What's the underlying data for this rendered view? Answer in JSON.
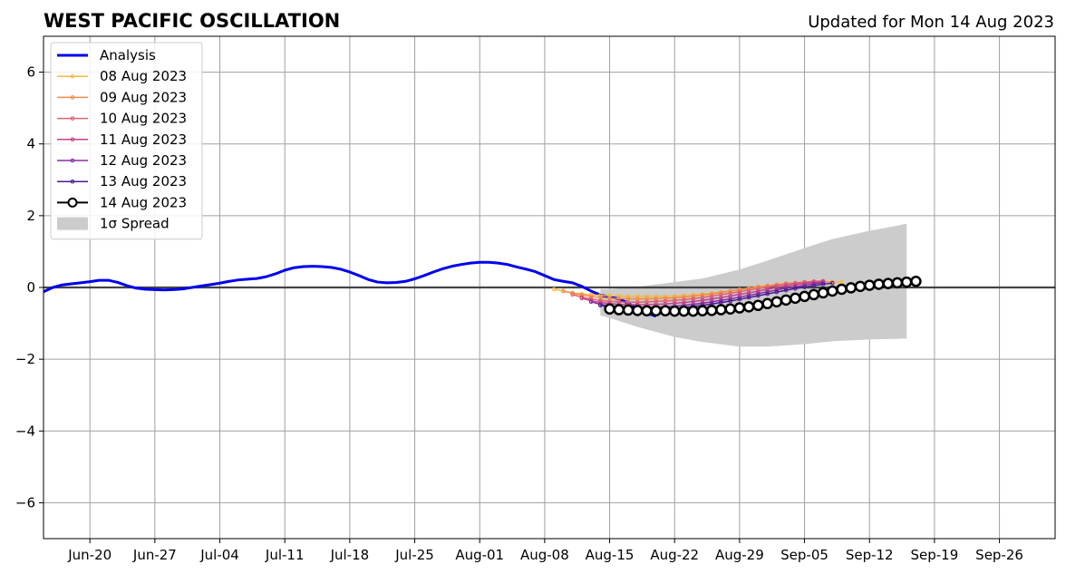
{
  "chart_data": {
    "type": "line",
    "title": "WEST PACIFIC OSCILLATION",
    "subtitle": "Updated for Mon 14 Aug 2023",
    "xlabel": "",
    "ylabel": "",
    "xlim": [
      "2023-06-15",
      "2023-10-02"
    ],
    "ylim": [
      -7,
      7
    ],
    "grid": true,
    "legend_position": "top-left",
    "x_ticks": [
      {
        "date": "2023-06-20",
        "label": "Jun-20"
      },
      {
        "date": "2023-06-27",
        "label": "Jun-27"
      },
      {
        "date": "2023-07-04",
        "label": "Jul-04"
      },
      {
        "date": "2023-07-11",
        "label": "Jul-11"
      },
      {
        "date": "2023-07-18",
        "label": "Jul-18"
      },
      {
        "date": "2023-07-25",
        "label": "Jul-25"
      },
      {
        "date": "2023-08-01",
        "label": "Aug-01"
      },
      {
        "date": "2023-08-08",
        "label": "Aug-08"
      },
      {
        "date": "2023-08-15",
        "label": "Aug-15"
      },
      {
        "date": "2023-08-22",
        "label": "Aug-22"
      },
      {
        "date": "2023-08-29",
        "label": "Aug-29"
      },
      {
        "date": "2023-09-05",
        "label": "Sep-05"
      },
      {
        "date": "2023-09-12",
        "label": "Sep-12"
      },
      {
        "date": "2023-09-19",
        "label": "Sep-19"
      },
      {
        "date": "2023-09-26",
        "label": "Sep-26"
      }
    ],
    "y_ticks": [
      {
        "value": 6,
        "label": "6"
      },
      {
        "value": 4,
        "label": "4"
      },
      {
        "value": 2,
        "label": "2"
      },
      {
        "value": 0,
        "label": "0"
      },
      {
        "value": -2,
        "label": "−2"
      },
      {
        "value": -4,
        "label": "−4"
      },
      {
        "value": -6,
        "label": "−6"
      }
    ],
    "analysis": {
      "name": "Analysis",
      "color": "#0000ee",
      "start": "2023-06-15",
      "values": [
        -0.12,
        0.0,
        0.07,
        0.1,
        0.13,
        0.16,
        0.2,
        0.2,
        0.14,
        0.05,
        -0.02,
        -0.05,
        -0.06,
        -0.07,
        -0.06,
        -0.04,
        0.0,
        0.04,
        0.08,
        0.12,
        0.17,
        0.21,
        0.23,
        0.25,
        0.3,
        0.38,
        0.48,
        0.55,
        0.58,
        0.59,
        0.58,
        0.56,
        0.51,
        0.43,
        0.33,
        0.22,
        0.15,
        0.13,
        0.14,
        0.17,
        0.24,
        0.33,
        0.43,
        0.52,
        0.59,
        0.64,
        0.68,
        0.7,
        0.7,
        0.68,
        0.64,
        0.57,
        0.51,
        0.44,
        0.33,
        0.22,
        0.17,
        0.13,
        0.03,
        -0.1,
        -0.21,
        -0.26,
        -0.32,
        -0.44,
        -0.6,
        -0.72,
        -0.8
      ]
    },
    "forecasts": [
      {
        "name": "08 Aug 2023",
        "color": "#f5b841",
        "start": "2023-08-09",
        "values": [
          -0.05,
          -0.1,
          -0.15,
          -0.18,
          -0.2,
          -0.22,
          -0.23,
          -0.24,
          -0.25,
          -0.25,
          -0.25,
          -0.25,
          -0.25,
          -0.24,
          -0.23,
          -0.21,
          -0.19,
          -0.16,
          -0.13,
          -0.1,
          -0.06,
          -0.03,
          0.0,
          0.03,
          0.06,
          0.09,
          0.12,
          0.14,
          0.15,
          0.16,
          0.16,
          0.15
        ]
      },
      {
        "name": "09 Aug 2023",
        "color": "#f08c4a",
        "start": "2023-08-10",
        "values": [
          -0.1,
          -0.16,
          -0.21,
          -0.25,
          -0.28,
          -0.3,
          -0.31,
          -0.32,
          -0.32,
          -0.32,
          -0.31,
          -0.3,
          -0.29,
          -0.27,
          -0.24,
          -0.21,
          -0.18,
          -0.14,
          -0.1,
          -0.06,
          -0.02,
          0.02,
          0.05,
          0.08,
          0.11,
          0.13,
          0.15,
          0.16,
          0.16,
          0.15
        ]
      },
      {
        "name": "10 Aug 2023",
        "color": "#e0616d",
        "start": "2023-08-11",
        "values": [
          -0.2,
          -0.27,
          -0.32,
          -0.36,
          -0.39,
          -0.4,
          -0.41,
          -0.41,
          -0.4,
          -0.39,
          -0.38,
          -0.36,
          -0.34,
          -0.31,
          -0.28,
          -0.24,
          -0.2,
          -0.16,
          -0.12,
          -0.07,
          -0.03,
          0.01,
          0.05,
          0.09,
          0.12,
          0.15,
          0.17,
          0.18
        ]
      },
      {
        "name": "11 Aug 2023",
        "color": "#c4438a",
        "start": "2023-08-12",
        "values": [
          -0.3,
          -0.37,
          -0.42,
          -0.45,
          -0.47,
          -0.48,
          -0.48,
          -0.48,
          -0.47,
          -0.46,
          -0.44,
          -0.42,
          -0.39,
          -0.36,
          -0.32,
          -0.28,
          -0.24,
          -0.19,
          -0.15,
          -0.1,
          -0.05,
          0.0,
          0.04,
          0.08,
          0.11,
          0.14,
          0.16
        ]
      },
      {
        "name": "12 Aug 2023",
        "color": "#8a2ea3",
        "start": "2023-08-13",
        "values": [
          -0.4,
          -0.47,
          -0.51,
          -0.54,
          -0.55,
          -0.56,
          -0.56,
          -0.55,
          -0.54,
          -0.52,
          -0.5,
          -0.47,
          -0.44,
          -0.4,
          -0.36,
          -0.32,
          -0.27,
          -0.22,
          -0.17,
          -0.12,
          -0.07,
          -0.02,
          0.02,
          0.06,
          0.1,
          0.13
        ]
      },
      {
        "name": "13 Aug 2023",
        "color": "#4a1c8f",
        "start": "2023-08-14",
        "values": [
          -0.5,
          -0.55,
          -0.58,
          -0.6,
          -0.61,
          -0.61,
          -0.61,
          -0.6,
          -0.58,
          -0.56,
          -0.53,
          -0.5,
          -0.46,
          -0.42,
          -0.38,
          -0.33,
          -0.28,
          -0.23,
          -0.18,
          -0.13,
          -0.08,
          -0.03,
          0.01,
          0.05,
          0.09,
          0.12
        ]
      },
      {
        "name": "14 Aug 2023",
        "color": "#000000",
        "start": "2023-08-15",
        "values": [
          -0.6,
          -0.62,
          -0.63,
          -0.64,
          -0.65,
          -0.65,
          -0.65,
          -0.66,
          -0.66,
          -0.66,
          -0.65,
          -0.64,
          -0.62,
          -0.6,
          -0.57,
          -0.54,
          -0.5,
          -0.45,
          -0.4,
          -0.35,
          -0.3,
          -0.25,
          -0.2,
          -0.15,
          -0.1,
          -0.05,
          -0.01,
          0.03,
          0.06,
          0.09,
          0.11,
          0.13,
          0.15,
          0.17
        ]
      }
    ],
    "spread": {
      "name": "1σ Spread",
      "color": "#cccccc",
      "dates": [
        "2023-08-14",
        "2023-08-15",
        "2023-08-18",
        "2023-08-22",
        "2023-08-25",
        "2023-08-29",
        "2023-09-01",
        "2023-09-05",
        "2023-09-08",
        "2023-09-12",
        "2023-09-15",
        "2023-09-16"
      ],
      "upper": [
        -0.05,
        -0.05,
        0.02,
        0.15,
        0.25,
        0.5,
        0.75,
        1.1,
        1.35,
        1.58,
        1.72,
        1.78
      ],
      "lower": [
        -0.78,
        -0.85,
        -1.1,
        -1.38,
        -1.52,
        -1.65,
        -1.65,
        -1.58,
        -1.5,
        -1.45,
        -1.43,
        -1.42
      ]
    },
    "zero_line": 0
  }
}
